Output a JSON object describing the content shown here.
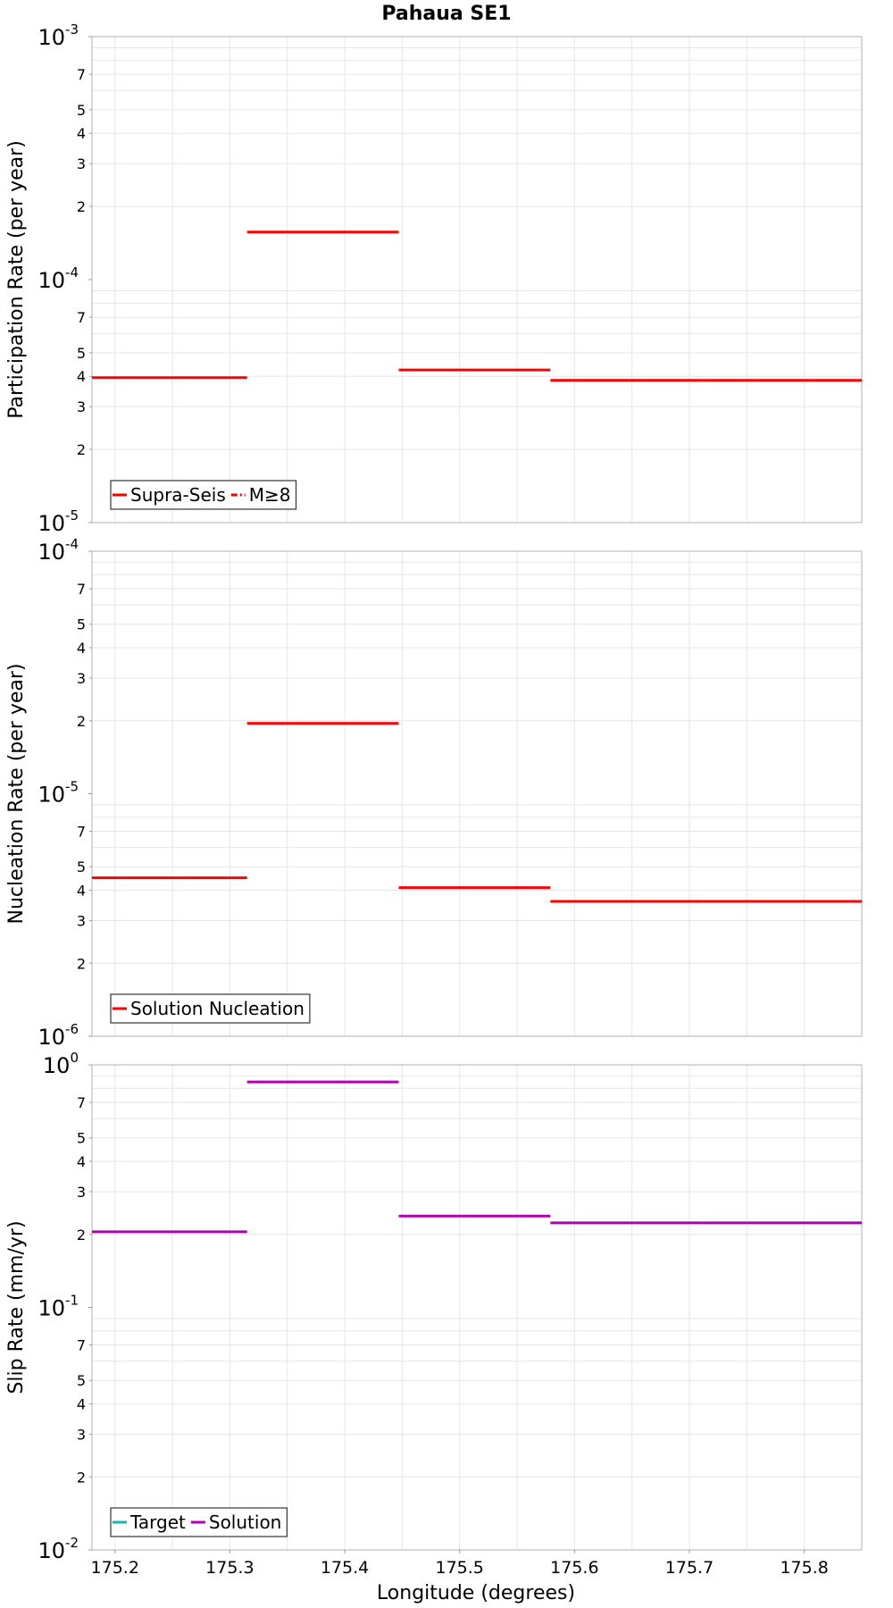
{
  "chart_data": [
    {
      "type": "line",
      "title": "Pahaua SE1",
      "ylabel": "Participation Rate (per year)",
      "yscale": "log",
      "ylim": [
        1e-05,
        0.001
      ],
      "xlim": [
        175.18,
        175.85
      ],
      "grid": true,
      "legend_position": "bottom-left",
      "major_ticks": [
        {
          "base": "10",
          "exp": "-3",
          "value": 0.001
        },
        {
          "base": "10",
          "exp": "-4",
          "value": 0.0001
        },
        {
          "base": "10",
          "exp": "-5",
          "value": 1e-05
        }
      ],
      "minor_tick_labels": [
        "2",
        "3",
        "4",
        "5",
        "7"
      ],
      "legend": [
        {
          "name": "Supra-Seis",
          "color": "#ff0000",
          "dash": "solid"
        },
        {
          "name": "M≥8",
          "color": "#ff0000",
          "dash": "dashdot"
        }
      ],
      "series": [
        {
          "name": "Supra-Seis",
          "color": "#ff0000",
          "segments": [
            {
              "x0": 175.18,
              "x1": 175.315,
              "y": 3.95e-05
            },
            {
              "x0": 175.315,
              "x1": 175.447,
              "y": 0.000157
            },
            {
              "x0": 175.447,
              "x1": 175.579,
              "y": 4.25e-05
            },
            {
              "x0": 175.579,
              "x1": 175.711,
              "y": 3.85e-05
            },
            {
              "x0": 175.711,
              "x1": 175.85,
              "y": 3.85e-05
            }
          ]
        }
      ]
    },
    {
      "type": "line",
      "ylabel": "Nucleation Rate (per year)",
      "yscale": "log",
      "ylim": [
        1e-06,
        0.0001
      ],
      "xlim": [
        175.18,
        175.85
      ],
      "grid": true,
      "legend_position": "bottom-left",
      "major_ticks": [
        {
          "base": "10",
          "exp": "-4",
          "value": 0.0001
        },
        {
          "base": "10",
          "exp": "-5",
          "value": 1e-05
        },
        {
          "base": "10",
          "exp": "-6",
          "value": 1e-06
        }
      ],
      "minor_tick_labels": [
        "2",
        "3",
        "4",
        "5",
        "7"
      ],
      "legend": [
        {
          "name": "Solution Nucleation",
          "color": "#ff0000",
          "dash": "solid"
        }
      ],
      "series": [
        {
          "name": "Solution Nucleation",
          "color": "#ff0000",
          "segments": [
            {
              "x0": 175.18,
              "x1": 175.315,
              "y": 4.5e-06
            },
            {
              "x0": 175.315,
              "x1": 175.447,
              "y": 1.95e-05
            },
            {
              "x0": 175.447,
              "x1": 175.579,
              "y": 4.1e-06
            },
            {
              "x0": 175.579,
              "x1": 175.711,
              "y": 3.6e-06
            },
            {
              "x0": 175.711,
              "x1": 175.85,
              "y": 3.6e-06
            }
          ]
        }
      ]
    },
    {
      "type": "line",
      "ylabel": "Slip Rate (mm/yr)",
      "xlabel": "Longitude (degrees)",
      "yscale": "log",
      "ylim": [
        0.01,
        1
      ],
      "xlim": [
        175.18,
        175.85
      ],
      "grid": true,
      "legend_position": "bottom-left",
      "major_ticks": [
        {
          "base": "10",
          "exp": "0",
          "value": 1
        },
        {
          "base": "10",
          "exp": "-1",
          "value": 0.1
        },
        {
          "base": "10",
          "exp": "-2",
          "value": 0.01
        }
      ],
      "minor_tick_labels": [
        "2",
        "3",
        "4",
        "5",
        "7"
      ],
      "x_ticks": [
        "175.2",
        "175.3",
        "175.4",
        "175.5",
        "175.6",
        "175.7",
        "175.8"
      ],
      "legend": [
        {
          "name": "Target",
          "color": "#20b2aa",
          "dash": "solid"
        },
        {
          "name": "Solution",
          "color": "#b000b0",
          "dash": "solid"
        }
      ],
      "series": [
        {
          "name": "Solution",
          "color": "#b000b0",
          "segments": [
            {
              "x0": 175.18,
              "x1": 175.315,
              "y": 0.205
            },
            {
              "x0": 175.315,
              "x1": 175.447,
              "y": 0.85
            },
            {
              "x0": 175.447,
              "x1": 175.579,
              "y": 0.238
            },
            {
              "x0": 175.579,
              "x1": 175.711,
              "y": 0.223
            },
            {
              "x0": 175.711,
              "x1": 175.85,
              "y": 0.223
            }
          ]
        }
      ]
    }
  ]
}
